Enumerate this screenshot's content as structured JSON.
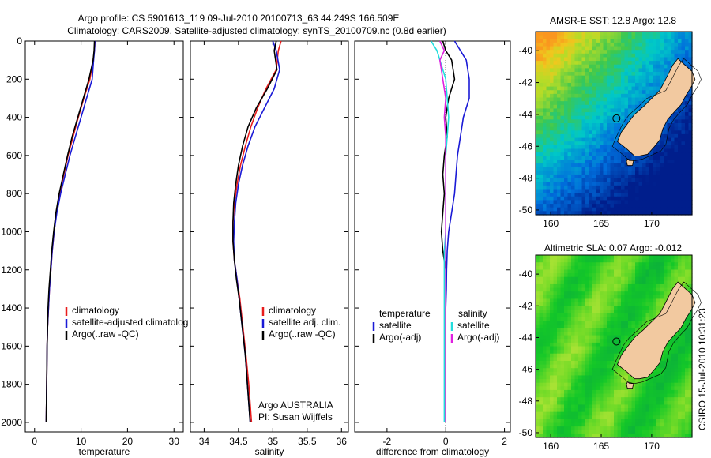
{
  "title": {
    "line1": "Argo profile: CS 5901613_119 09-Jul-2010 20100713_63 44.249S 166.509E",
    "line2": "Climatology: CARS2009. Satellite-adjusted climatology: synTS_20100709.nc (0.8d earlier)"
  },
  "colors": {
    "climatology": "#e81c1c",
    "satellite": "#1a1ad6",
    "argo": "#000000",
    "sal_satellite": "#22dddd",
    "sal_argo": "#e020e0",
    "land": "#f2c9a0"
  },
  "chart_data": [
    {
      "type": "line",
      "name": "temperature-panel",
      "xlabel": "temperature",
      "ylabel": "",
      "xlim": [
        -2,
        32
      ],
      "ylim": [
        2050,
        0
      ],
      "xticks": [
        "0",
        "10",
        "20",
        "30"
      ],
      "yticks": [
        "0",
        "200",
        "400",
        "600",
        "800",
        "1000",
        "1200",
        "1400",
        "1600",
        "1800",
        "2000"
      ],
      "legend": [
        "climatology",
        "satellite-adjusted climatolog",
        "Argo(..raw -QC)"
      ],
      "legend_position": "lower-right",
      "series": [
        {
          "name": "climatology",
          "color": "climatology",
          "x": [
            13.0,
            12.9,
            12.6,
            11.9,
            10.6,
            9.4,
            8.3,
            7.2,
            6.3,
            5.4,
            4.7,
            4.2,
            3.8,
            3.5,
            3.2,
            3.0,
            2.8,
            2.7,
            2.6,
            2.5
          ],
          "y": [
            0,
            50,
            100,
            200,
            300,
            400,
            500,
            600,
            700,
            800,
            900,
            1000,
            1100,
            1200,
            1300,
            1400,
            1500,
            1600,
            1800,
            2000
          ]
        },
        {
          "name": "satellite-adjusted climatology",
          "color": "satellite",
          "x": [
            13.0,
            12.9,
            12.7,
            12.4,
            11.2,
            10.0,
            8.8,
            7.6,
            6.6,
            5.6,
            4.8,
            4.2,
            3.8,
            3.5,
            3.2,
            3.0,
            2.8,
            2.7,
            2.6,
            2.5
          ],
          "y": [
            0,
            50,
            100,
            200,
            300,
            400,
            500,
            600,
            700,
            800,
            900,
            1000,
            1100,
            1200,
            1300,
            1400,
            1500,
            1600,
            1800,
            2000
          ]
        },
        {
          "name": "Argo",
          "color": "argo",
          "x": [
            12.9,
            12.8,
            12.6,
            11.7,
            10.5,
            9.3,
            8.1,
            7.1,
            6.2,
            5.3,
            4.6,
            4.1,
            3.7,
            3.4,
            3.1,
            2.9,
            2.8,
            2.7,
            2.6,
            2.5
          ],
          "y": [
            0,
            50,
            100,
            200,
            300,
            400,
            500,
            600,
            700,
            800,
            900,
            1000,
            1100,
            1200,
            1300,
            1400,
            1500,
            1600,
            1800,
            2000
          ]
        }
      ]
    },
    {
      "type": "line",
      "name": "salinity-panel",
      "xlabel": "salinity",
      "ylabel": "",
      "xlim": [
        33.8,
        36.1
      ],
      "ylim": [
        2050,
        0
      ],
      "xticks": [
        "34",
        "34.5",
        "35",
        "35.5",
        "36"
      ],
      "legend": [
        "climatology",
        "satellite adj. clim.",
        "Argo(..raw -QC)"
      ],
      "legend_position": "lower-right",
      "annotations": [
        "Argo AUSTRALIA",
        "PI: Susan Wijffels"
      ],
      "series": [
        {
          "name": "climatology",
          "color": "climatology",
          "x": [
            35.12,
            35.08,
            35.05,
            34.9,
            34.78,
            34.68,
            34.6,
            34.53,
            34.48,
            34.44,
            34.42,
            34.42,
            34.44,
            34.48,
            34.52,
            34.55,
            34.58,
            34.61,
            34.65,
            34.69
          ],
          "y": [
            0,
            50,
            150,
            250,
            350,
            450,
            550,
            650,
            750,
            850,
            950,
            1050,
            1150,
            1250,
            1350,
            1450,
            1550,
            1650,
            1800,
            2000
          ]
        },
        {
          "name": "satellite adj. clim.",
          "color": "satellite",
          "x": [
            35.0,
            35.05,
            35.1,
            35.02,
            34.88,
            34.74,
            34.64,
            34.56,
            34.5,
            34.46,
            34.44,
            34.43,
            34.44,
            34.48,
            34.51,
            34.54,
            34.57,
            34.6,
            34.63,
            34.67
          ],
          "y": [
            0,
            50,
            150,
            250,
            350,
            450,
            550,
            650,
            750,
            850,
            950,
            1050,
            1150,
            1250,
            1350,
            1450,
            1550,
            1650,
            1800,
            2000
          ]
        },
        {
          "name": "Argo",
          "color": "argo",
          "x": [
            35.05,
            35.02,
            35.06,
            34.92,
            34.76,
            34.64,
            34.56,
            34.5,
            34.46,
            34.43,
            34.42,
            34.42,
            34.44,
            34.47,
            34.51,
            34.54,
            34.57,
            34.6,
            34.63,
            34.67
          ],
          "y": [
            0,
            50,
            150,
            250,
            350,
            450,
            550,
            650,
            750,
            850,
            950,
            1050,
            1150,
            1250,
            1350,
            1450,
            1550,
            1650,
            1800,
            2000
          ]
        }
      ]
    },
    {
      "type": "line",
      "name": "difference-panel",
      "xlabel": "difference from climatology",
      "ylabel": "",
      "xlim": [
        -3.1,
        2.2
      ],
      "ylim": [
        2050,
        0
      ],
      "xticks": [
        "-2",
        "0",
        "2"
      ],
      "legend_temperature": {
        "heading": "temperature",
        "items": [
          "satellite",
          "Argo(-adj)"
        ]
      },
      "legend_salinity": {
        "heading": "salinity",
        "items": [
          "satellite",
          "Argo(-adj)"
        ]
      },
      "series": [
        {
          "name": "temperature satellite",
          "color": "satellite",
          "x": [
            0.3,
            0.5,
            0.7,
            0.8,
            0.8,
            0.6,
            0.5,
            0.4,
            0.35,
            0.3,
            0.2,
            0.1,
            0.05,
            0.03,
            0.02,
            0.0,
            0.0,
            0.0,
            0.0
          ],
          "y": [
            0,
            50,
            100,
            200,
            300,
            400,
            500,
            600,
            700,
            800,
            900,
            1000,
            1100,
            1200,
            1300,
            1400,
            1600,
            1800,
            2000
          ]
        },
        {
          "name": "temperature Argo",
          "color": "argo",
          "x": [
            -0.1,
            0.0,
            0.2,
            0.3,
            0.1,
            0.0,
            0.05,
            -0.05,
            -0.1,
            -0.05,
            -0.1,
            -0.15,
            -0.1,
            0.0,
            0.0,
            0.0,
            0.0,
            0.0,
            0.0
          ],
          "y": [
            0,
            50,
            100,
            200,
            300,
            400,
            500,
            600,
            700,
            800,
            900,
            1000,
            1100,
            1200,
            1300,
            1400,
            1600,
            1800,
            2000
          ]
        },
        {
          "name": "salinity satellite",
          "color": "sal_satellite",
          "x": [
            -0.5,
            -0.3,
            -0.2,
            0.0,
            0.05,
            0.1,
            0.05,
            0.0,
            0.0,
            0.0,
            0.0,
            0.0,
            -0.05,
            -0.05,
            -0.05,
            -0.05,
            -0.05,
            -0.05,
            -0.05
          ],
          "y": [
            0,
            50,
            100,
            200,
            300,
            400,
            500,
            600,
            700,
            800,
            900,
            1000,
            1100,
            1200,
            1300,
            1400,
            1600,
            1800,
            2000
          ]
        },
        {
          "name": "salinity Argo",
          "color": "sal_argo",
          "x": [
            -0.2,
            -0.05,
            -0.2,
            -0.1,
            0.0,
            -0.05,
            0.0,
            0.0,
            0.0,
            0.0,
            0.0,
            0.0,
            0.0,
            0.0,
            0.0,
            0.0,
            0.0,
            0.0,
            0.0
          ],
          "y": [
            0,
            50,
            100,
            200,
            300,
            400,
            500,
            600,
            700,
            800,
            900,
            1000,
            1100,
            1200,
            1300,
            1400,
            1600,
            1800,
            2000
          ]
        }
      ]
    },
    {
      "type": "heatmap",
      "name": "sst-map",
      "title": "AMSR-E SST: 12.8 Argo: 12.8",
      "xticks": [
        "160",
        "165",
        "170"
      ],
      "yticks": [
        "-40",
        "-42",
        "-44",
        "-46",
        "-48",
        "-50"
      ],
      "xlim": [
        158.5,
        174
      ],
      "ylim": [
        -50.3,
        -38.8
      ],
      "profile_location": [
        166.509,
        -44.249
      ]
    },
    {
      "type": "heatmap",
      "name": "sla-map",
      "title": "Altimetric SLA: 0.07 Argo: -0.012",
      "xticks": [
        "160",
        "165",
        "170"
      ],
      "yticks": [
        "-40",
        "-42",
        "-44",
        "-46",
        "-48",
        "-50"
      ],
      "xlim": [
        158.5,
        174
      ],
      "ylim": [
        -50.3,
        -38.8
      ],
      "profile_location": [
        166.509,
        -44.249
      ]
    }
  ],
  "stamp": "CSIRO 15-Jul-2010 10:31:23"
}
